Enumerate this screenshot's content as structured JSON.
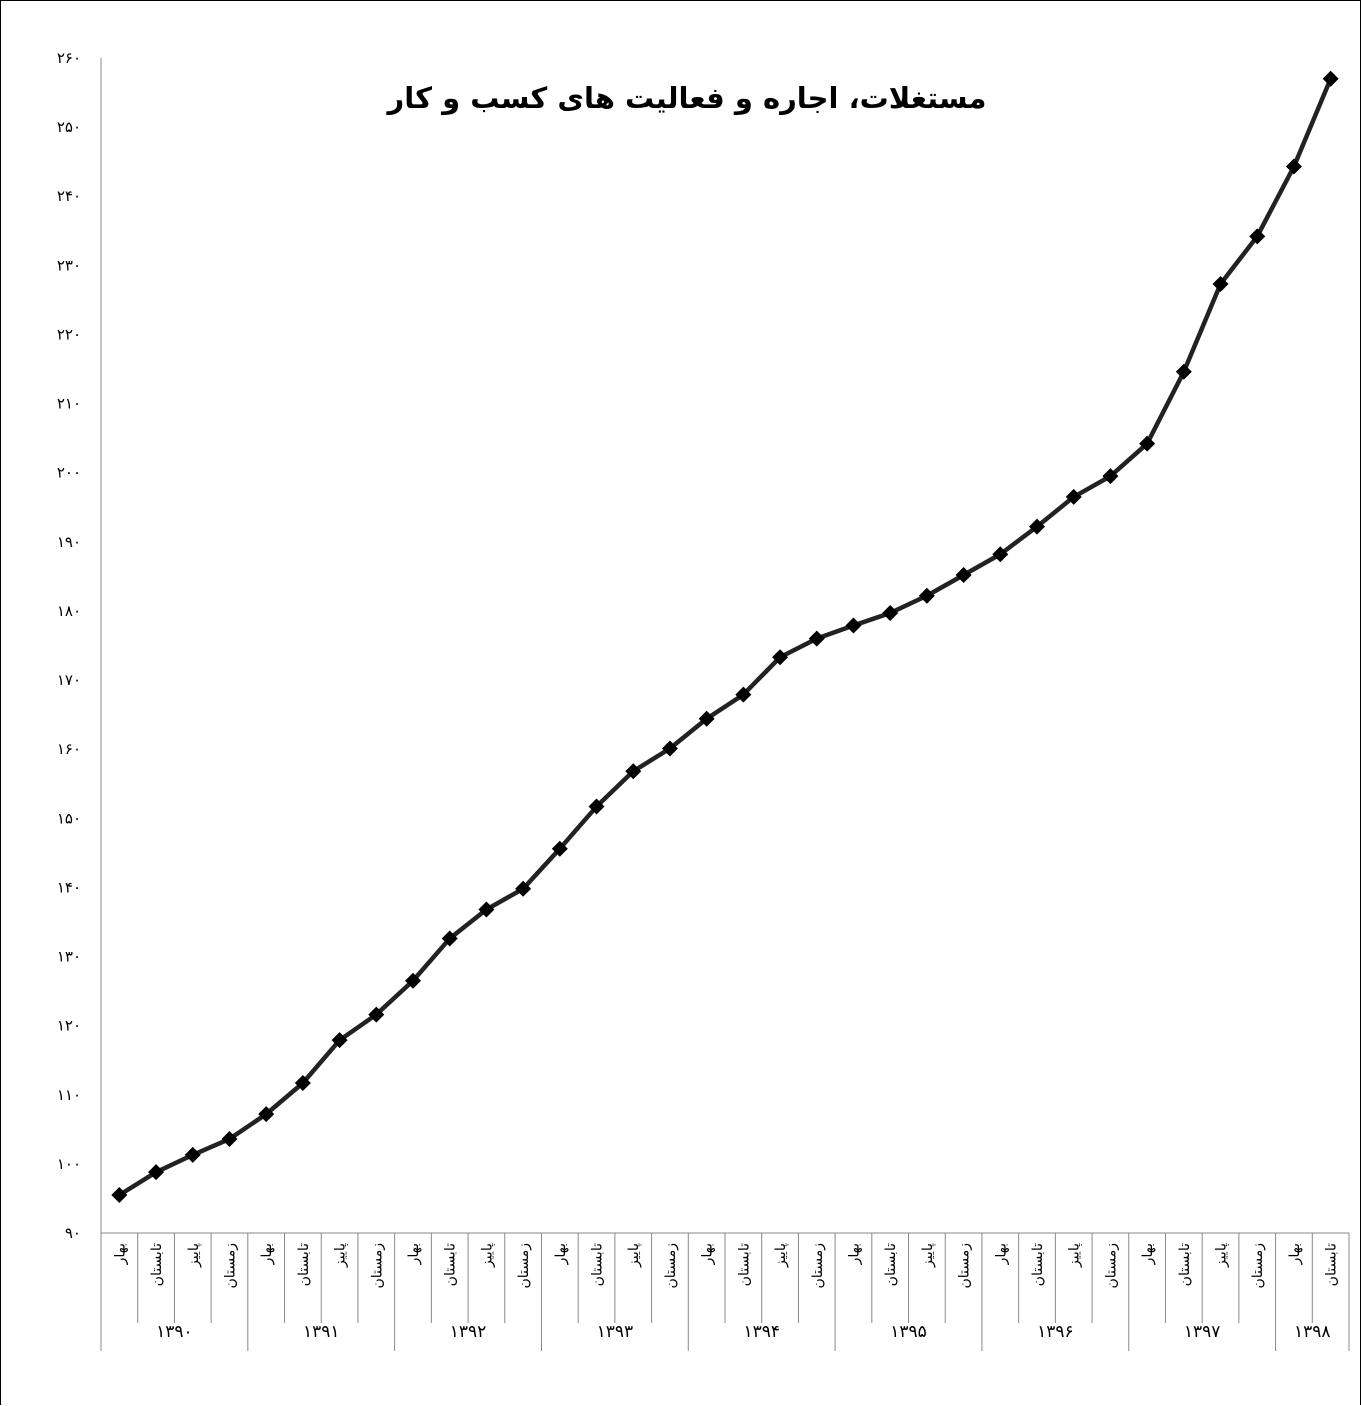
{
  "chart_data": {
    "type": "line",
    "title": "مستغلات، اجاره و فعالیت های کسب و کار",
    "xlabel": "",
    "ylabel": "",
    "ylim": [
      90,
      260
    ],
    "y_ticks": [
      {
        "value": 90,
        "label": "۹۰"
      },
      {
        "value": 100,
        "label": "۱۰۰"
      },
      {
        "value": 110,
        "label": "۱۱۰"
      },
      {
        "value": 120,
        "label": "۱۲۰"
      },
      {
        "value": 130,
        "label": "۱۳۰"
      },
      {
        "value": 140,
        "label": "۱۴۰"
      },
      {
        "value": 150,
        "label": "۱۵۰"
      },
      {
        "value": 160,
        "label": "۱۶۰"
      },
      {
        "value": 170,
        "label": "۱۷۰"
      },
      {
        "value": 180,
        "label": "۱۸۰"
      },
      {
        "value": 190,
        "label": "۱۹۰"
      },
      {
        "value": 200,
        "label": "۲۰۰"
      },
      {
        "value": 210,
        "label": "۲۱۰"
      },
      {
        "value": 220,
        "label": "۲۲۰"
      },
      {
        "value": 230,
        "label": "۲۳۰"
      },
      {
        "value": 240,
        "label": "۲۴۰"
      },
      {
        "value": 250,
        "label": "۲۵۰"
      },
      {
        "value": 260,
        "label": "۲۶۰"
      }
    ],
    "years": [
      {
        "label": "۱۳۹۰",
        "seasons": [
          "بهار",
          "تابستان",
          "پاییز",
          "زمستان"
        ]
      },
      {
        "label": "۱۳۹۱",
        "seasons": [
          "بهار",
          "تابستان",
          "پاییز",
          "زمستان"
        ]
      },
      {
        "label": "۱۳۹۲",
        "seasons": [
          "بهار",
          "تابستان",
          "پاییز",
          "زمستان"
        ]
      },
      {
        "label": "۱۳۹۳",
        "seasons": [
          "بهار",
          "تابستان",
          "پاییز",
          "زمستان"
        ]
      },
      {
        "label": "۱۳۹۴",
        "seasons": [
          "بهار",
          "تابستان",
          "پاییز",
          "زمستان"
        ]
      },
      {
        "label": "۱۳۹۵",
        "seasons": [
          "بهار",
          "تابستان",
          "پاییز",
          "زمستان"
        ]
      },
      {
        "label": "۱۳۹۶",
        "seasons": [
          "بهار",
          "تابستان",
          "پاییز",
          "زمستان"
        ]
      },
      {
        "label": "۱۳۹۷",
        "seasons": [
          "بهار",
          "تابستان",
          "پاییز",
          "زمستان"
        ]
      },
      {
        "label": "۱۳۹۸",
        "seasons": [
          "بهار",
          "تابستان"
        ]
      }
    ],
    "series": [
      {
        "values": [
          95.5,
          98.8,
          101.3,
          103.6,
          107.2,
          111.7,
          117.9,
          121.6,
          126.5,
          132.6,
          136.8,
          139.8,
          145.6,
          151.7,
          156.8,
          160.1,
          164.4,
          167.9,
          173.3,
          176.0,
          177.9,
          179.7,
          182.2,
          185.2,
          188.2,
          192.2,
          196.5,
          199.5,
          204.2,
          214.6,
          227.3,
          234.2,
          244.3,
          257.0
        ],
        "color": "#222222",
        "marker": "diamond"
      }
    ],
    "grid": false,
    "legend": "none"
  }
}
